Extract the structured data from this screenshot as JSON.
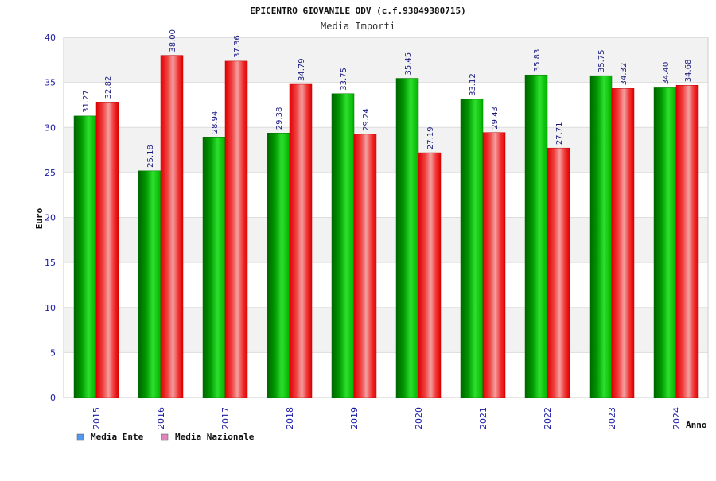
{
  "chart_data": {
    "type": "bar",
    "title": "EPICENTRO GIOVANILE ODV (c.f.93049380715)",
    "subtitle": "Media Importi",
    "xlabel": "Anno",
    "ylabel": "Euro",
    "ylim": [
      0,
      40
    ],
    "yticks": [
      "0",
      "5",
      "10",
      "15",
      "20",
      "25",
      "30",
      "35",
      "40"
    ],
    "categories": [
      "2015",
      "2016",
      "2017",
      "2018",
      "2019",
      "2020",
      "2021",
      "2022",
      "2023",
      "2024"
    ],
    "series": [
      {
        "name": "Media Ente",
        "color": "#00a000",
        "values": [
          31.27,
          25.18,
          28.94,
          29.38,
          33.75,
          35.45,
          33.12,
          35.83,
          35.75,
          34.4
        ],
        "labels": [
          "31.27",
          "25.18",
          "28.94",
          "29.38",
          "33.75",
          "35.45",
          "33.12",
          "35.83",
          "35.75",
          "34.40"
        ]
      },
      {
        "name": "Media Nazionale",
        "color": "#ee0000",
        "values": [
          32.82,
          38.0,
          37.36,
          34.79,
          29.24,
          27.19,
          29.43,
          27.71,
          34.32,
          34.68
        ],
        "labels": [
          "32.82",
          "38.00",
          "37.36",
          "34.79",
          "29.24",
          "27.19",
          "29.43",
          "27.71",
          "34.32",
          "34.68"
        ]
      }
    ],
    "legend": [
      {
        "name": "Media Ente",
        "color": "#5599ee"
      },
      {
        "name": "Media Nazionale",
        "color": "#dd88bb"
      }
    ],
    "legend_position": "bottom-left",
    "grid": true,
    "band_colors": [
      "#f2f2f2",
      "#ffffff"
    ]
  }
}
